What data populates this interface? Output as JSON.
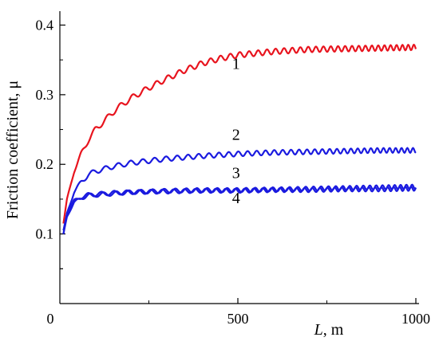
{
  "chart_data": {
    "type": "line",
    "title": "",
    "xlabel_var": "L",
    "xlabel_unit": ", m",
    "ylabel": "Friction coefficient, μ",
    "xlim": [
      0,
      1000
    ],
    "ylim": [
      0.0,
      0.42
    ],
    "x_ticks": [
      500,
      1000
    ],
    "x_tick_labels": [
      "500",
      "1000"
    ],
    "x_minor_ticks": [
      250,
      750
    ],
    "y_ticks": [
      0.1,
      0.2,
      0.3,
      0.4
    ],
    "y_tick_labels": [
      "0.1",
      "0.2",
      "0.3",
      "0.4"
    ],
    "origin_label": "0",
    "grid": false,
    "legend": "none",
    "series": [
      {
        "label": "1",
        "color": "#e8141e",
        "x": [
          10,
          20,
          40,
          60,
          80,
          100,
          130,
          160,
          200,
          250,
          300,
          350,
          400,
          450,
          500,
          600,
          700,
          800,
          900,
          1000
        ],
        "y": [
          0.115,
          0.15,
          0.19,
          0.215,
          0.235,
          0.25,
          0.265,
          0.28,
          0.295,
          0.31,
          0.323,
          0.335,
          0.345,
          0.352,
          0.357,
          0.362,
          0.365,
          0.366,
          0.367,
          0.368
        ],
        "ripple": 0.004,
        "label_at": [
          495,
          0.337
        ]
      },
      {
        "label": "2",
        "color": "#1a1adf",
        "x": [
          10,
          20,
          40,
          60,
          80,
          100,
          150,
          200,
          300,
          400,
          500,
          600,
          700,
          800,
          900,
          1000
        ],
        "y": [
          0.1,
          0.13,
          0.16,
          0.175,
          0.185,
          0.19,
          0.197,
          0.202,
          0.208,
          0.212,
          0.215,
          0.217,
          0.218,
          0.219,
          0.22,
          0.22
        ],
        "ripple": 0.0035,
        "label_at": [
          495,
          0.235
        ]
      },
      {
        "label": "3",
        "color": "#1a1adf",
        "x": [
          10,
          20,
          40,
          60,
          80,
          100,
          150,
          200,
          300,
          400,
          500,
          600,
          700,
          800,
          900,
          1000
        ],
        "y": [
          0.1,
          0.125,
          0.145,
          0.152,
          0.155,
          0.156,
          0.158,
          0.16,
          0.162,
          0.163,
          0.163,
          0.164,
          0.165,
          0.166,
          0.167,
          0.168
        ],
        "ripple": 0.003,
        "label_at": [
          495,
          0.18
        ]
      },
      {
        "label": "4",
        "color": "#1a1adf",
        "x": [
          10,
          20,
          40,
          60,
          80,
          100,
          150,
          200,
          300,
          400,
          500,
          600,
          700,
          800,
          900,
          1000
        ],
        "y": [
          0.105,
          0.13,
          0.148,
          0.153,
          0.156,
          0.157,
          0.159,
          0.16,
          0.161,
          0.162,
          0.162,
          0.163,
          0.163,
          0.164,
          0.164,
          0.165
        ],
        "ripple": 0.003,
        "label_at": [
          495,
          0.144
        ]
      }
    ]
  }
}
